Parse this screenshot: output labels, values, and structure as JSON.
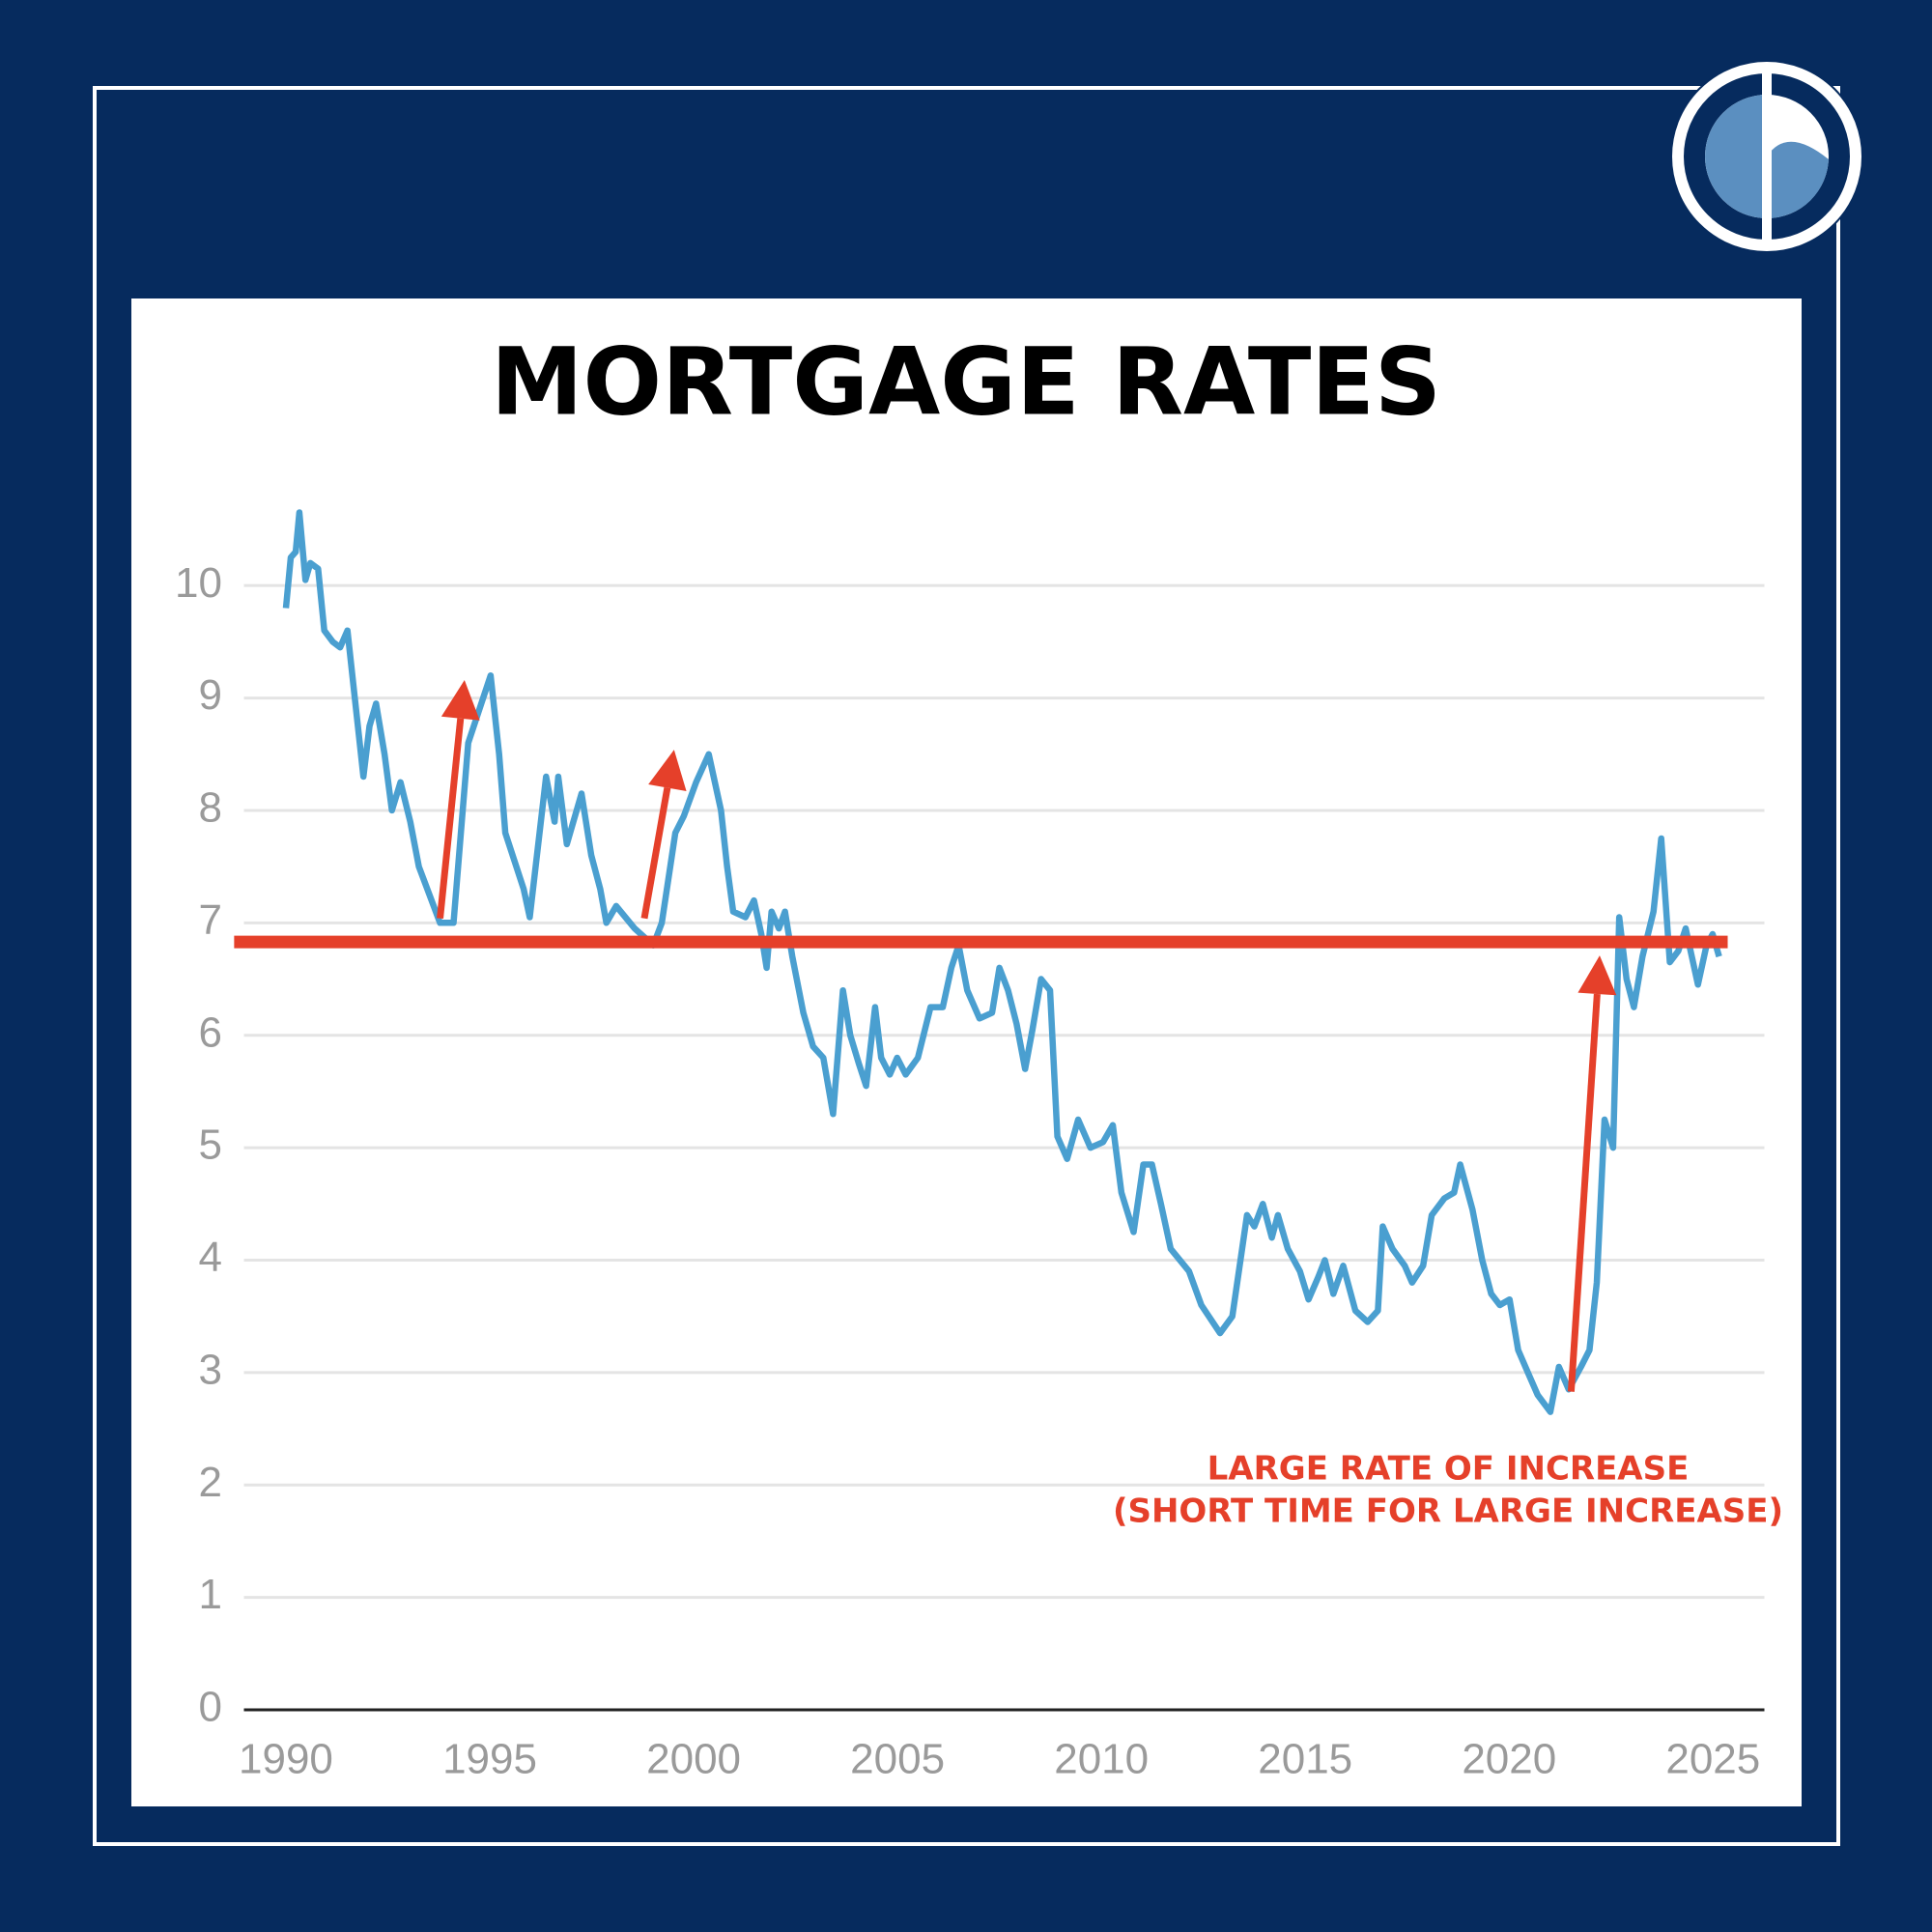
{
  "chart_data": {
    "type": "line",
    "title": "MORTGAGE RATES",
    "x": [
      1990.0,
      1990.12,
      1990.24,
      1990.33,
      1990.48,
      1990.6,
      1990.79,
      1990.94,
      1991.15,
      1991.33,
      1991.51,
      1991.69,
      1991.9,
      1992.05,
      1992.21,
      1992.42,
      1992.6,
      1992.81,
      1993.05,
      1993.26,
      1993.78,
      1994.11,
      1994.47,
      1995.02,
      1995.23,
      1995.38,
      1995.83,
      1995.98,
      1996.38,
      1996.59,
      1996.68,
      1996.89,
      1997.25,
      1997.49,
      1997.71,
      1997.86,
      1998.1,
      1998.55,
      1999.01,
      1999.22,
      1999.55,
      1999.76,
      2000.06,
      2000.37,
      2000.67,
      2000.82,
      2000.97,
      2001.27,
      2001.48,
      2001.66,
      2001.79,
      2001.91,
      2002.09,
      2002.24,
      2002.42,
      2002.69,
      2002.93,
      2003.18,
      2003.42,
      2003.66,
      2003.84,
      2004.05,
      2004.23,
      2004.45,
      2004.6,
      2004.81,
      2004.99,
      2005.2,
      2005.5,
      2005.81,
      2006.11,
      2006.32,
      2006.5,
      2006.71,
      2007.01,
      2007.32,
      2007.5,
      2007.71,
      2007.92,
      2008.13,
      2008.31,
      2008.52,
      2008.74,
      2008.92,
      2009.16,
      2009.43,
      2009.73,
      2010.04,
      2010.28,
      2010.49,
      2010.79,
      2011.03,
      2011.24,
      2011.46,
      2011.7,
      2012.15,
      2012.45,
      2012.91,
      2013.21,
      2013.57,
      2013.75,
      2013.96,
      2014.18,
      2014.33,
      2014.57,
      2014.87,
      2015.08,
      2015.32,
      2015.48,
      2015.69,
      2015.93,
      2016.23,
      2016.53,
      2016.78,
      2016.9,
      2017.14,
      2017.44,
      2017.62,
      2017.89,
      2018.1,
      2018.41,
      2018.65,
      2018.8,
      2019.1,
      2019.34,
      2019.56,
      2019.77,
      2020.01,
      2020.22,
      2020.46,
      2020.7,
      2021.01,
      2021.22,
      2021.46,
      2021.76,
      2021.97,
      2022.15,
      2022.34,
      2022.55,
      2022.7,
      2022.88,
      2023.06,
      2023.27,
      2023.54,
      2023.73,
      2023.94,
      2024.15,
      2024.33,
      2024.63,
      2024.84,
      2024.99,
      2025.15
    ],
    "values": [
      9.8,
      10.25,
      10.3,
      10.65,
      10.05,
      10.2,
      10.15,
      9.6,
      9.5,
      9.45,
      9.6,
      9.0,
      8.3,
      8.75,
      8.95,
      8.5,
      8.0,
      8.25,
      7.9,
      7.5,
      7.0,
      7.0,
      8.6,
      9.2,
      8.5,
      7.8,
      7.3,
      7.05,
      8.3,
      7.9,
      8.3,
      7.7,
      8.15,
      7.6,
      7.3,
      7.0,
      7.15,
      6.95,
      6.8,
      7.0,
      7.8,
      7.95,
      8.25,
      8.5,
      8.0,
      7.5,
      7.1,
      7.05,
      7.2,
      6.9,
      6.6,
      7.1,
      6.95,
      7.1,
      6.7,
      6.2,
      5.9,
      5.8,
      5.3,
      6.4,
      6.0,
      5.75,
      5.55,
      6.25,
      5.8,
      5.65,
      5.8,
      5.65,
      5.8,
      6.25,
      6.25,
      6.6,
      6.8,
      6.4,
      6.15,
      6.2,
      6.6,
      6.4,
      6.1,
      5.7,
      6.05,
      6.5,
      6.4,
      5.1,
      4.9,
      5.25,
      5.0,
      5.05,
      5.2,
      4.6,
      4.25,
      4.85,
      4.85,
      4.5,
      4.1,
      3.9,
      3.6,
      3.35,
      3.5,
      4.4,
      4.3,
      4.5,
      4.2,
      4.4,
      4.1,
      3.9,
      3.65,
      3.85,
      4.0,
      3.7,
      3.95,
      3.55,
      3.45,
      3.55,
      4.3,
      4.1,
      3.95,
      3.8,
      3.95,
      4.4,
      4.55,
      4.6,
      4.85,
      4.45,
      4.0,
      3.7,
      3.6,
      3.65,
      3.2,
      3.0,
      2.8,
      2.65,
      3.05,
      2.85,
      3.05,
      3.2,
      3.8,
      5.25,
      5.0,
      7.05,
      6.5,
      6.25,
      6.7,
      7.1,
      7.75,
      6.65,
      6.75,
      6.95,
      6.45,
      6.8,
      6.9,
      6.7
    ],
    "line_color": "#4a9fd0",
    "xlim": [
      1988.97,
      2026.26
    ],
    "xticks": [
      1990,
      1995,
      2000,
      2005,
      2010,
      2015,
      2020,
      2025
    ],
    "ylim": [
      0,
      11
    ],
    "yticks": [
      0,
      1,
      2,
      3,
      4,
      5,
      6,
      7,
      8,
      9,
      10
    ],
    "grid": true,
    "reference_line": {
      "value": 6.83,
      "x": [
        1988.73,
        2025.36
      ],
      "color": "#e5402a"
    },
    "arrows": [
      {
        "x": [
          1993.78,
          1994.38
        ],
        "y": [
          7.04,
          9.16
        ]
      },
      {
        "x": [
          1998.79,
          1999.52
        ],
        "y": [
          7.04,
          8.54
        ]
      },
      {
        "x": [
          2021.52,
          2022.22
        ],
        "y": [
          2.83,
          6.71
        ]
      }
    ],
    "arrow_color": "#e5402a",
    "annotation": [
      "LARGE RATE OF INCREASE",
      "(SHORT TIME FOR LARGE INCREASE)"
    ]
  }
}
